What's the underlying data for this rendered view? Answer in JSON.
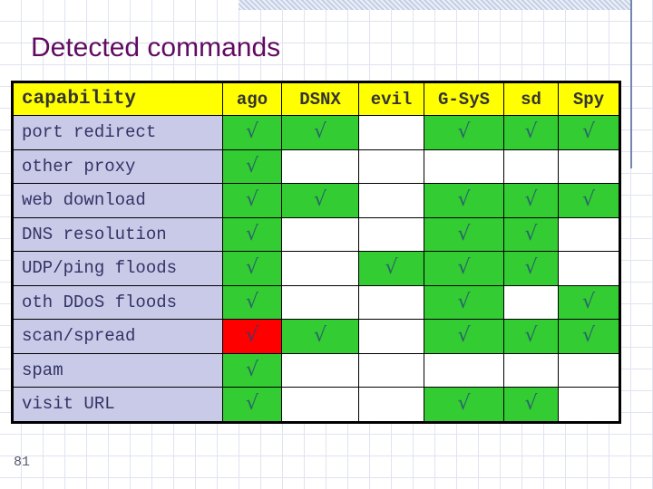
{
  "slide": {
    "title": "Detected commands",
    "page_number": "81"
  },
  "colors": {
    "header_bg": "#ffff00",
    "label_bg": "#c9c9e8",
    "check_bg": "#33cc33",
    "check_bg_alert": "#ff0000",
    "title_color": "#600b60",
    "check_color": "#2a6868"
  },
  "table": {
    "check_glyph": "√",
    "columns": [
      {
        "label": "capability"
      },
      {
        "label": "ago"
      },
      {
        "label": "DSNX"
      },
      {
        "label": "evil"
      },
      {
        "label": "G-SyS"
      },
      {
        "label": "sd"
      },
      {
        "label": "Spy"
      }
    ],
    "rows": [
      {
        "label": "port redirect",
        "cells": [
          "check",
          "check",
          "",
          "check",
          "check",
          "check"
        ]
      },
      {
        "label": "other proxy",
        "cells": [
          "check",
          "",
          "",
          "",
          "",
          ""
        ]
      },
      {
        "label": "web download",
        "cells": [
          "check",
          "check",
          "",
          "check",
          "check",
          "check"
        ]
      },
      {
        "label": "DNS resolution",
        "cells": [
          "check",
          "",
          "",
          "check",
          "check",
          ""
        ]
      },
      {
        "label": "UDP/ping floods",
        "cells": [
          "check",
          "",
          "check",
          "check",
          "check",
          ""
        ]
      },
      {
        "label": "oth DDoS floods",
        "cells": [
          "check",
          "",
          "",
          "check",
          "",
          "check"
        ]
      },
      {
        "label": "scan/spread",
        "cells": [
          "check-red",
          "check",
          "",
          "check",
          "check",
          "check"
        ]
      },
      {
        "label": "spam",
        "cells": [
          "check",
          "",
          "",
          "",
          "",
          ""
        ]
      },
      {
        "label": "visit URL",
        "cells": [
          "check",
          "",
          "",
          "check",
          "check",
          ""
        ]
      }
    ]
  }
}
